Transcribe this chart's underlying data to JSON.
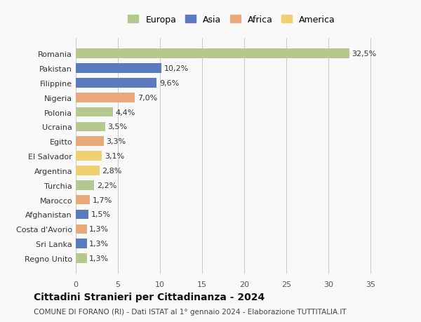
{
  "categories": [
    "Regno Unito",
    "Sri Lanka",
    "Costa d'Avorio",
    "Afghanistan",
    "Marocco",
    "Turchia",
    "Argentina",
    "El Salvador",
    "Egitto",
    "Ucraina",
    "Polonia",
    "Nigeria",
    "Filippine",
    "Pakistan",
    "Romania"
  ],
  "values": [
    1.3,
    1.3,
    1.3,
    1.5,
    1.7,
    2.2,
    2.8,
    3.1,
    3.3,
    3.5,
    4.4,
    7.0,
    9.6,
    10.2,
    32.5
  ],
  "labels": [
    "1,3%",
    "1,3%",
    "1,3%",
    "1,5%",
    "1,7%",
    "2,2%",
    "2,8%",
    "3,1%",
    "3,3%",
    "3,5%",
    "4,4%",
    "7,0%",
    "9,6%",
    "10,2%",
    "32,5%"
  ],
  "colors": [
    "#b5c98e",
    "#5b7bbf",
    "#e8a97a",
    "#5b7bbf",
    "#e8a97a",
    "#b5c98e",
    "#f0d070",
    "#f0d070",
    "#e8a97a",
    "#b5c98e",
    "#b5c98e",
    "#e8a97a",
    "#5b7bbf",
    "#5b7bbf",
    "#b5c98e"
  ],
  "legend": [
    {
      "label": "Europa",
      "color": "#b5c98e"
    },
    {
      "label": "Asia",
      "color": "#5b7bbf"
    },
    {
      "label": "Africa",
      "color": "#e8a97a"
    },
    {
      "label": "America",
      "color": "#f0d070"
    }
  ],
  "xlim": [
    0,
    37
  ],
  "xticks": [
    0,
    5,
    10,
    15,
    20,
    25,
    30,
    35
  ],
  "title": "Cittadini Stranieri per Cittadinanza - 2024",
  "subtitle": "COMUNE DI FORANO (RI) - Dati ISTAT al 1° gennaio 2024 - Elaborazione TUTTITALIA.IT",
  "background_color": "#f9f9f9",
  "bar_height": 0.65,
  "grid_color": "#cccccc"
}
